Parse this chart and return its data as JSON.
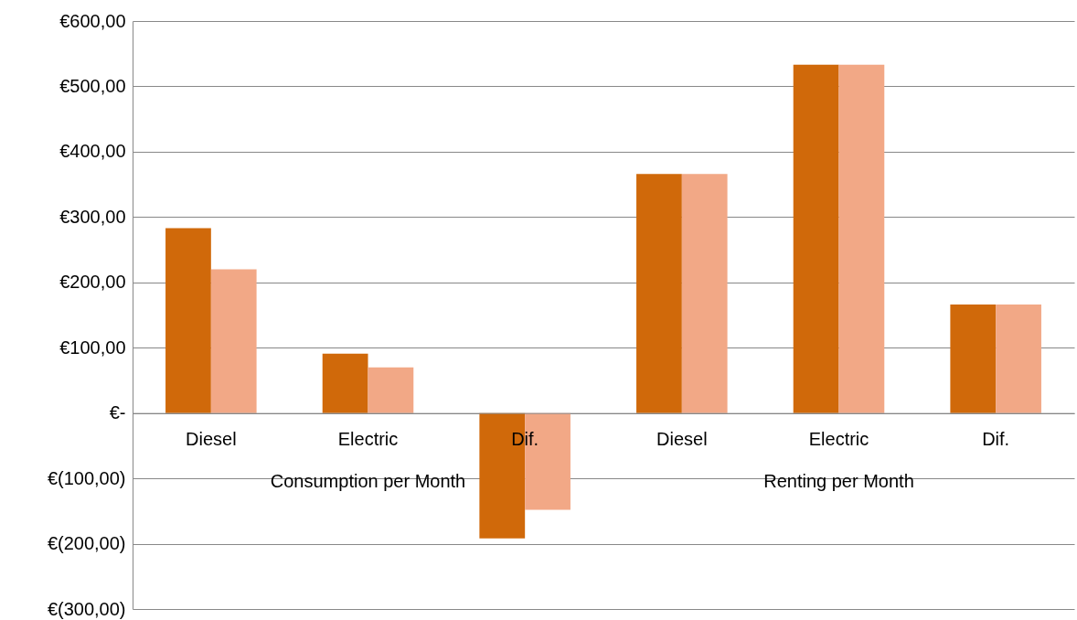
{
  "chart_data": {
    "type": "bar",
    "categories": [
      "Diesel",
      "Electric",
      "Dif.",
      "Diesel",
      "Electric",
      "Dif."
    ],
    "series": [
      {
        "color": "#d0690a",
        "values": [
          283,
          91,
          -192,
          366,
          533,
          166
        ]
      },
      {
        "color": "#f2a886",
        "values": [
          220,
          70,
          -148,
          366,
          533,
          166
        ]
      }
    ],
    "ylim": [
      -300,
      600
    ],
    "yticks": [
      {
        "value": -300,
        "label": "€(300,00)"
      },
      {
        "value": -200,
        "label": "€(200,00)"
      },
      {
        "value": -100,
        "label": "€(100,00)"
      },
      {
        "value": 0,
        "label": "€-"
      },
      {
        "value": 100,
        "label": "€100,00"
      },
      {
        "value": 200,
        "label": "€200,00"
      },
      {
        "value": 300,
        "label": "€300,00"
      },
      {
        "value": 400,
        "label": "€400,00"
      },
      {
        "value": 500,
        "label": "€500,00"
      },
      {
        "value": 600,
        "label": "€600,00"
      }
    ],
    "grid": "y",
    "legend": false,
    "annotations": [
      "Consumption per Month",
      "Renting per Month"
    ]
  }
}
